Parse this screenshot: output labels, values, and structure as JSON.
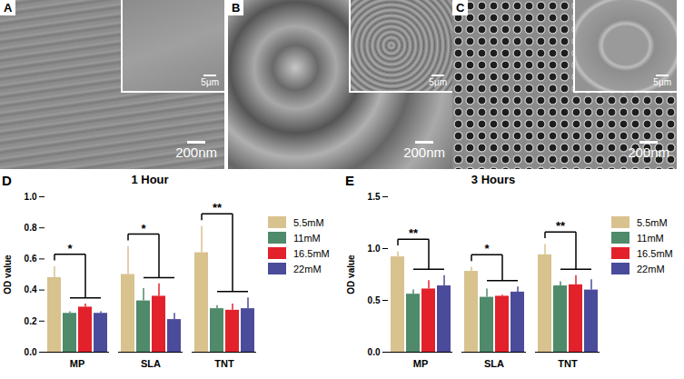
{
  "image_panels": [
    {
      "label": "A",
      "scale_bar": "200nm",
      "inset_scale_bar": "5μm"
    },
    {
      "label": "B",
      "scale_bar": "200nm",
      "inset_scale_bar": "5μm"
    },
    {
      "label": "C",
      "scale_bar": "200nm",
      "inset_scale_bar": "5μm"
    }
  ],
  "chart_data": [
    {
      "type": "bar",
      "panel": "D",
      "title": "1 Hour",
      "y_label": "OD value",
      "categories": [
        "MP",
        "SLA",
        "TNT"
      ],
      "series": [
        {
          "name": "5.5mM",
          "color": "#d8c28e",
          "values": [
            0.48,
            0.5,
            0.64
          ],
          "errors": [
            0.07,
            0.18,
            0.17
          ]
        },
        {
          "name": "11mM",
          "color": "#4f8a6a",
          "values": [
            0.25,
            0.33,
            0.28
          ],
          "errors": [
            0.01,
            0.08,
            0.02
          ]
        },
        {
          "name": "16.5mM",
          "color": "#e3212b",
          "values": [
            0.29,
            0.36,
            0.27
          ],
          "errors": [
            0.02,
            0.08,
            0.04
          ]
        },
        {
          "name": "22mM",
          "color": "#4b4b9b",
          "values": [
            0.25,
            0.21,
            0.28
          ],
          "errors": [
            0.01,
            0.04,
            0.07
          ]
        }
      ],
      "significance": [
        {
          "category": "MP",
          "label": "*"
        },
        {
          "category": "SLA",
          "label": "*"
        },
        {
          "category": "TNT",
          "label": "**"
        }
      ],
      "ylim": [
        0,
        1.0
      ],
      "yticks": [
        {
          "value": 0,
          "label": "0.0"
        },
        {
          "value": 0.2,
          "label": "0.2"
        },
        {
          "value": 0.4,
          "label": "0.4"
        },
        {
          "value": 0.6,
          "label": "0.6"
        },
        {
          "value": 0.8,
          "label": "0.8"
        },
        {
          "value": 1.0,
          "label": "1.0"
        }
      ],
      "legend": "right",
      "grid": false
    },
    {
      "type": "bar",
      "panel": "E",
      "title": "3 Hours",
      "y_label": "OD value",
      "categories": [
        "MP",
        "SLA",
        "TNT"
      ],
      "series": [
        {
          "name": "5.5mM",
          "color": "#d8c28e",
          "values": [
            0.92,
            0.78,
            0.94
          ],
          "errors": [
            0.05,
            0.04,
            0.1
          ]
        },
        {
          "name": "11mM",
          "color": "#4f8a6a",
          "values": [
            0.56,
            0.53,
            0.64
          ],
          "errors": [
            0.04,
            0.08,
            0.04
          ]
        },
        {
          "name": "16.5mM",
          "color": "#e3212b",
          "values": [
            0.61,
            0.54,
            0.65
          ],
          "errors": [
            0.08,
            0.01,
            0.09
          ]
        },
        {
          "name": "22mM",
          "color": "#4b4b9b",
          "values": [
            0.64,
            0.58,
            0.6
          ],
          "errors": [
            0.1,
            0.05,
            0.1
          ]
        }
      ],
      "significance": [
        {
          "category": "MP",
          "label": "**"
        },
        {
          "category": "SLA",
          "label": "*"
        },
        {
          "category": "TNT",
          "label": "**"
        }
      ],
      "ylim": [
        0,
        1.5
      ],
      "yticks": [
        {
          "value": 0,
          "label": "0.0"
        },
        {
          "value": 0.5,
          "label": "0.5"
        },
        {
          "value": 1.0,
          "label": "1.0"
        },
        {
          "value": 1.5,
          "label": "1.5"
        }
      ],
      "legend": "right",
      "grid": false
    }
  ]
}
